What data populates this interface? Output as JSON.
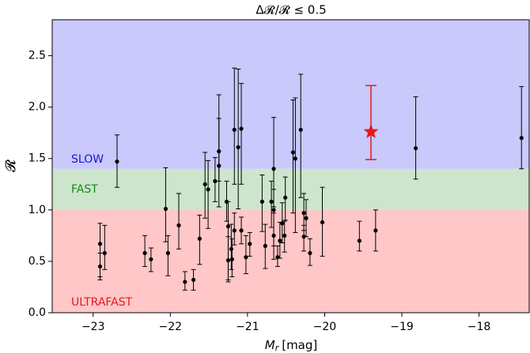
{
  "chart_data": {
    "type": "scatter",
    "title": "Δ𝓡/𝓡 ≤ 0.5",
    "x_label": "Mr [mag]",
    "x_label_main": "M",
    "x_label_sub": "r",
    "x_label_unit": "[mag]",
    "y_label": "𝓡",
    "xlim": [
      -23.53,
      -17.35
    ],
    "ylim": [
      0,
      2.85
    ],
    "xticks": [
      {
        "value": -23,
        "label": "−23"
      },
      {
        "value": -22,
        "label": "−22"
      },
      {
        "value": -21,
        "label": "−21"
      },
      {
        "value": -20,
        "label": "−20"
      },
      {
        "value": -19,
        "label": "−19"
      },
      {
        "value": -18,
        "label": "−18"
      }
    ],
    "yticks": [
      {
        "value": 0,
        "label": "0.0"
      },
      0.5,
      {
        "value": 1,
        "label": "1.0"
      },
      1.5,
      {
        "value": 2,
        "label": "2.0"
      },
      2.5
    ],
    "bands": [
      {
        "label": "ULTRAFAST",
        "ymin": 0,
        "ymax": 1.0,
        "color": "#ffc7c7",
        "text_color": "#e8191c"
      },
      {
        "label": "FAST",
        "ymin": 1.0,
        "ymax": 1.4,
        "color": "#cce5cc",
        "text_color": "#148c14"
      },
      {
        "label": "SLOW",
        "ymin": 1.4,
        "ymax": 2.85,
        "color": "#c9c9fb",
        "text_color": "#1515d6"
      }
    ],
    "series": [
      {
        "color": "#000000",
        "marker": "circle",
        "x": [
          -22.91,
          -22.91,
          -22.85,
          -22.69,
          -22.33,
          -22.25,
          -22.06,
          -22.03,
          -21.89,
          -21.81,
          -21.7,
          -21.62,
          -21.55,
          -21.51,
          -21.42,
          -21.37,
          -21.37,
          -21.27,
          -21.25,
          -21.25,
          -21.21,
          -21.2,
          -21.17,
          -21.17,
          -21.12,
          -21.08,
          -21.08,
          -21.02,
          -20.97,
          -20.81,
          -20.77,
          -20.69,
          -20.66,
          -20.66,
          -20.66,
          -20.61,
          -20.58,
          -20.55,
          -20.52,
          -20.51,
          -20.41,
          -20.38,
          -20.31,
          -20.27,
          -20.27,
          -20.24,
          -20.19,
          -20.03,
          -19.55,
          -19.34,
          -18.82,
          -17.45
        ],
        "values": [
          0.67,
          0.45,
          0.58,
          1.47,
          0.58,
          0.52,
          1.01,
          0.58,
          0.85,
          0.3,
          0.32,
          0.72,
          1.25,
          1.2,
          1.28,
          1.57,
          1.43,
          1.08,
          0.84,
          0.51,
          0.62,
          0.52,
          1.78,
          0.8,
          1.61,
          1.79,
          0.8,
          0.54,
          0.67,
          1.08,
          0.65,
          1.08,
          1.4,
          1.0,
          0.75,
          0.54,
          0.7,
          0.87,
          0.75,
          1.12,
          1.56,
          1.5,
          1.78,
          0.97,
          0.74,
          0.92,
          0.58,
          0.88,
          0.7,
          0.8,
          1.6,
          1.7
        ],
        "lower": [
          0.32,
          0.35,
          0.42,
          1.22,
          0.45,
          0.4,
          0.69,
          0.36,
          0.62,
          0.22,
          0.22,
          0.47,
          0.92,
          0.82,
          1.08,
          1.28,
          1.03,
          0.89,
          0.32,
          0.3,
          0.42,
          0.35,
          1.25,
          0.66,
          1.01,
          1.25,
          0.67,
          0.38,
          0.55,
          0.79,
          0.43,
          0.83,
          1.03,
          0.65,
          0.52,
          0.45,
          0.53,
          0.68,
          0.59,
          0.9,
          0.97,
          0.78,
          1.12,
          0.8,
          0.6,
          0.74,
          0.46,
          0.55,
          0.6,
          0.6,
          1.3,
          1.4
        ],
        "upper": [
          0.87,
          0.58,
          0.85,
          1.73,
          0.75,
          0.63,
          1.41,
          0.75,
          1.16,
          0.4,
          0.42,
          0.95,
          1.56,
          1.48,
          1.51,
          2.12,
          1.89,
          1.28,
          1.08,
          0.74,
          0.86,
          0.72,
          2.38,
          0.97,
          2.37,
          2.23,
          0.93,
          0.75,
          0.78,
          1.34,
          0.86,
          1.28,
          1.9,
          1.2,
          0.97,
          0.65,
          0.88,
          1.07,
          0.89,
          1.32,
          2.07,
          2.09,
          2.32,
          1.16,
          0.85,
          1.1,
          0.72,
          1.22,
          0.89,
          1.0,
          2.1,
          2.2
        ]
      },
      {
        "color": "#e8191c",
        "marker": "star",
        "x": [
          -19.4
        ],
        "values": [
          1.76
        ],
        "lower": [
          1.49
        ],
        "upper": [
          2.21
        ]
      }
    ]
  }
}
